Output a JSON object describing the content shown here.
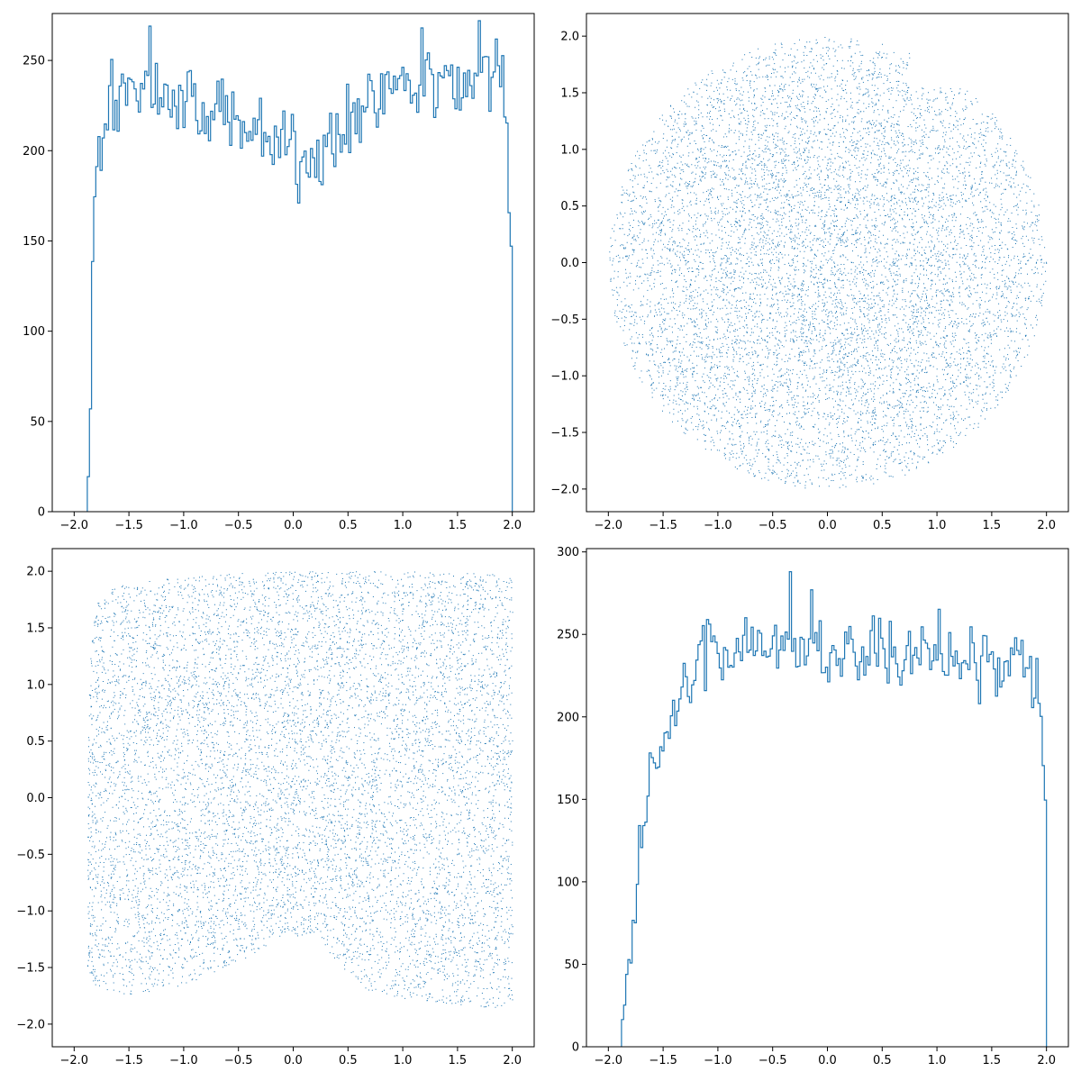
{
  "figure": {
    "layout": "2x2 grid",
    "background": "#ffffff"
  },
  "chart_data": [
    {
      "id": "top-left",
      "type": "bar",
      "histtype": "step",
      "color": "#1f77b4",
      "title": "",
      "xlabel": "",
      "ylabel": "",
      "xlim": [
        -2.2,
        2.2
      ],
      "ylim": [
        0,
        276
      ],
      "xticks": [
        -2.0,
        -1.5,
        -1.0,
        -0.5,
        0.0,
        0.5,
        1.0,
        1.5,
        2.0
      ],
      "xtick_labels": [
        "−2.0",
        "−1.5",
        "−1.0",
        "−0.5",
        "0.0",
        "0.5",
        "1.0",
        "1.5",
        "2.0"
      ],
      "yticks": [
        0,
        50,
        100,
        150,
        200,
        250
      ],
      "ytick_labels": [
        "0",
        "50",
        "100",
        "150",
        "200",
        "250"
      ],
      "grid": false,
      "bins": {
        "start": -1.88,
        "end": 2.0,
        "count": 200
      },
      "profile": [
        [
          -1.88,
          0
        ],
        [
          -1.87,
          20
        ],
        [
          -1.85,
          60
        ],
        [
          -1.83,
          140
        ],
        [
          -1.81,
          172
        ],
        [
          -1.79,
          200
        ],
        [
          -1.76,
          205
        ],
        [
          -1.72,
          225
        ],
        [
          -1.65,
          235
        ],
        [
          -1.4,
          235
        ],
        [
          -1.2,
          230
        ],
        [
          -0.8,
          222
        ],
        [
          -0.4,
          215
        ],
        [
          -0.1,
          205
        ],
        [
          0.1,
          193
        ],
        [
          0.3,
          205
        ],
        [
          0.6,
          225
        ],
        [
          1.0,
          240
        ],
        [
          1.5,
          242
        ],
        [
          1.85,
          242
        ],
        [
          1.92,
          238
        ],
        [
          1.95,
          218
        ],
        [
          1.97,
          185
        ],
        [
          1.99,
          158
        ],
        [
          2.0,
          0
        ]
      ],
      "noise": 16,
      "peaks": [
        [
          -1.3,
          269
        ],
        [
          1.69,
          272
        ],
        [
          1.17,
          268
        ],
        [
          0.05,
          171
        ]
      ]
    },
    {
      "id": "top-right",
      "type": "scatter",
      "color": "#1f77b4",
      "title": "",
      "xlabel": "",
      "ylabel": "",
      "xlim": [
        -2.2,
        2.2
      ],
      "ylim": [
        -2.2,
        2.2
      ],
      "xticks": [
        -2.0,
        -1.5,
        -1.0,
        -0.5,
        0.0,
        0.5,
        1.0,
        1.5,
        2.0
      ],
      "xtick_labels": [
        "−2.0",
        "−1.5",
        "−1.0",
        "−0.5",
        "0.0",
        "0.5",
        "1.0",
        "1.5",
        "2.0"
      ],
      "yticks": [
        -2.0,
        -1.5,
        -1.0,
        -0.5,
        0.0,
        0.5,
        1.0,
        1.5,
        2.0
      ],
      "ytick_labels": [
        "−2.0",
        "−1.5",
        "−1.0",
        "−0.5",
        "0.0",
        "0.5",
        "1.0",
        "1.5",
        "2.0"
      ],
      "grid": false,
      "distribution": {
        "shape": "disk",
        "radius": 2.0,
        "center": [
          0,
          0
        ],
        "points": 9000
      }
    },
    {
      "id": "bottom-left",
      "type": "scatter",
      "color": "#1f77b4",
      "title": "",
      "xlabel": "",
      "ylabel": "",
      "xlim": [
        -2.2,
        2.2
      ],
      "ylim": [
        -2.2,
        2.2
      ],
      "xticks": [
        -2.0,
        -1.5,
        -1.0,
        -0.5,
        0.0,
        0.5,
        1.0,
        1.5,
        2.0
      ],
      "xtick_labels": [
        "−2.0",
        "−1.5",
        "−1.0",
        "−0.5",
        "0.0",
        "0.5",
        "1.0",
        "1.5",
        "2.0"
      ],
      "yticks": [
        -2.0,
        -1.5,
        -1.0,
        -0.5,
        0.0,
        0.5,
        1.0,
        1.5,
        2.0
      ],
      "ytick_labels": [
        "−2.0",
        "−1.5",
        "−1.0",
        "−0.5",
        "0.0",
        "0.5",
        "1.0",
        "1.5",
        "2.0"
      ],
      "grid": false,
      "distribution": {
        "shape": "region",
        "x_range": [
          -1.88,
          2.0
        ],
        "top_edge": [
          [
            -1.88,
            0.1
          ],
          [
            -1.86,
            1.2
          ],
          [
            -1.8,
            1.75
          ],
          [
            -1.6,
            1.88
          ],
          [
            -1.2,
            1.93
          ],
          [
            -0.6,
            1.98
          ],
          [
            0.0,
            2.0
          ],
          [
            1.0,
            2.0
          ],
          [
            2.0,
            1.98
          ]
        ],
        "bottom_edge": [
          [
            -1.88,
            -1.5
          ],
          [
            -1.8,
            -1.68
          ],
          [
            -1.5,
            -1.76
          ],
          [
            -1.0,
            -1.65
          ],
          [
            -0.5,
            -1.45
          ],
          [
            -0.1,
            -1.22
          ],
          [
            0.2,
            -1.22
          ],
          [
            0.45,
            -1.5
          ],
          [
            0.7,
            -1.72
          ],
          [
            1.2,
            -1.8
          ],
          [
            1.6,
            -1.84
          ],
          [
            1.9,
            -1.86
          ],
          [
            2.0,
            -1.8
          ]
        ],
        "points": 9000
      }
    },
    {
      "id": "bottom-right",
      "type": "bar",
      "histtype": "step",
      "color": "#1f77b4",
      "title": "",
      "xlabel": "",
      "ylabel": "",
      "xlim": [
        -2.2,
        2.2
      ],
      "ylim": [
        0,
        302
      ],
      "xticks": [
        -2.0,
        -1.5,
        -1.0,
        -0.5,
        0.0,
        0.5,
        1.0,
        1.5,
        2.0
      ],
      "xtick_labels": [
        "−2.0",
        "−1.5",
        "−1.0",
        "−0.5",
        "0.0",
        "0.5",
        "1.0",
        "1.5",
        "2.0"
      ],
      "yticks": [
        0,
        50,
        100,
        150,
        200,
        250,
        300
      ],
      "ytick_labels": [
        "0",
        "50",
        "100",
        "150",
        "200",
        "250",
        "300"
      ],
      "grid": false,
      "bins": {
        "start": -1.88,
        "end": 2.0,
        "count": 200
      },
      "profile": [
        [
          -1.88,
          0
        ],
        [
          -1.87,
          17
        ],
        [
          -1.84,
          30
        ],
        [
          -1.8,
          58
        ],
        [
          -1.75,
          90
        ],
        [
          -1.7,
          140
        ],
        [
          -1.62,
          165
        ],
        [
          -1.5,
          180
        ],
        [
          -1.4,
          195
        ],
        [
          -1.3,
          215
        ],
        [
          -1.15,
          235
        ],
        [
          -1.0,
          240
        ],
        [
          -0.5,
          240
        ],
        [
          0.0,
          238
        ],
        [
          0.5,
          237
        ],
        [
          1.0,
          236
        ],
        [
          1.5,
          237
        ],
        [
          1.85,
          232
        ],
        [
          1.9,
          220
        ],
        [
          1.95,
          200
        ],
        [
          1.97,
          175
        ],
        [
          1.99,
          152
        ],
        [
          2.0,
          0
        ]
      ],
      "noise": 16,
      "peaks": [
        [
          -0.33,
          288
        ],
        [
          -0.15,
          277
        ],
        [
          1.38,
          208
        ]
      ]
    }
  ]
}
